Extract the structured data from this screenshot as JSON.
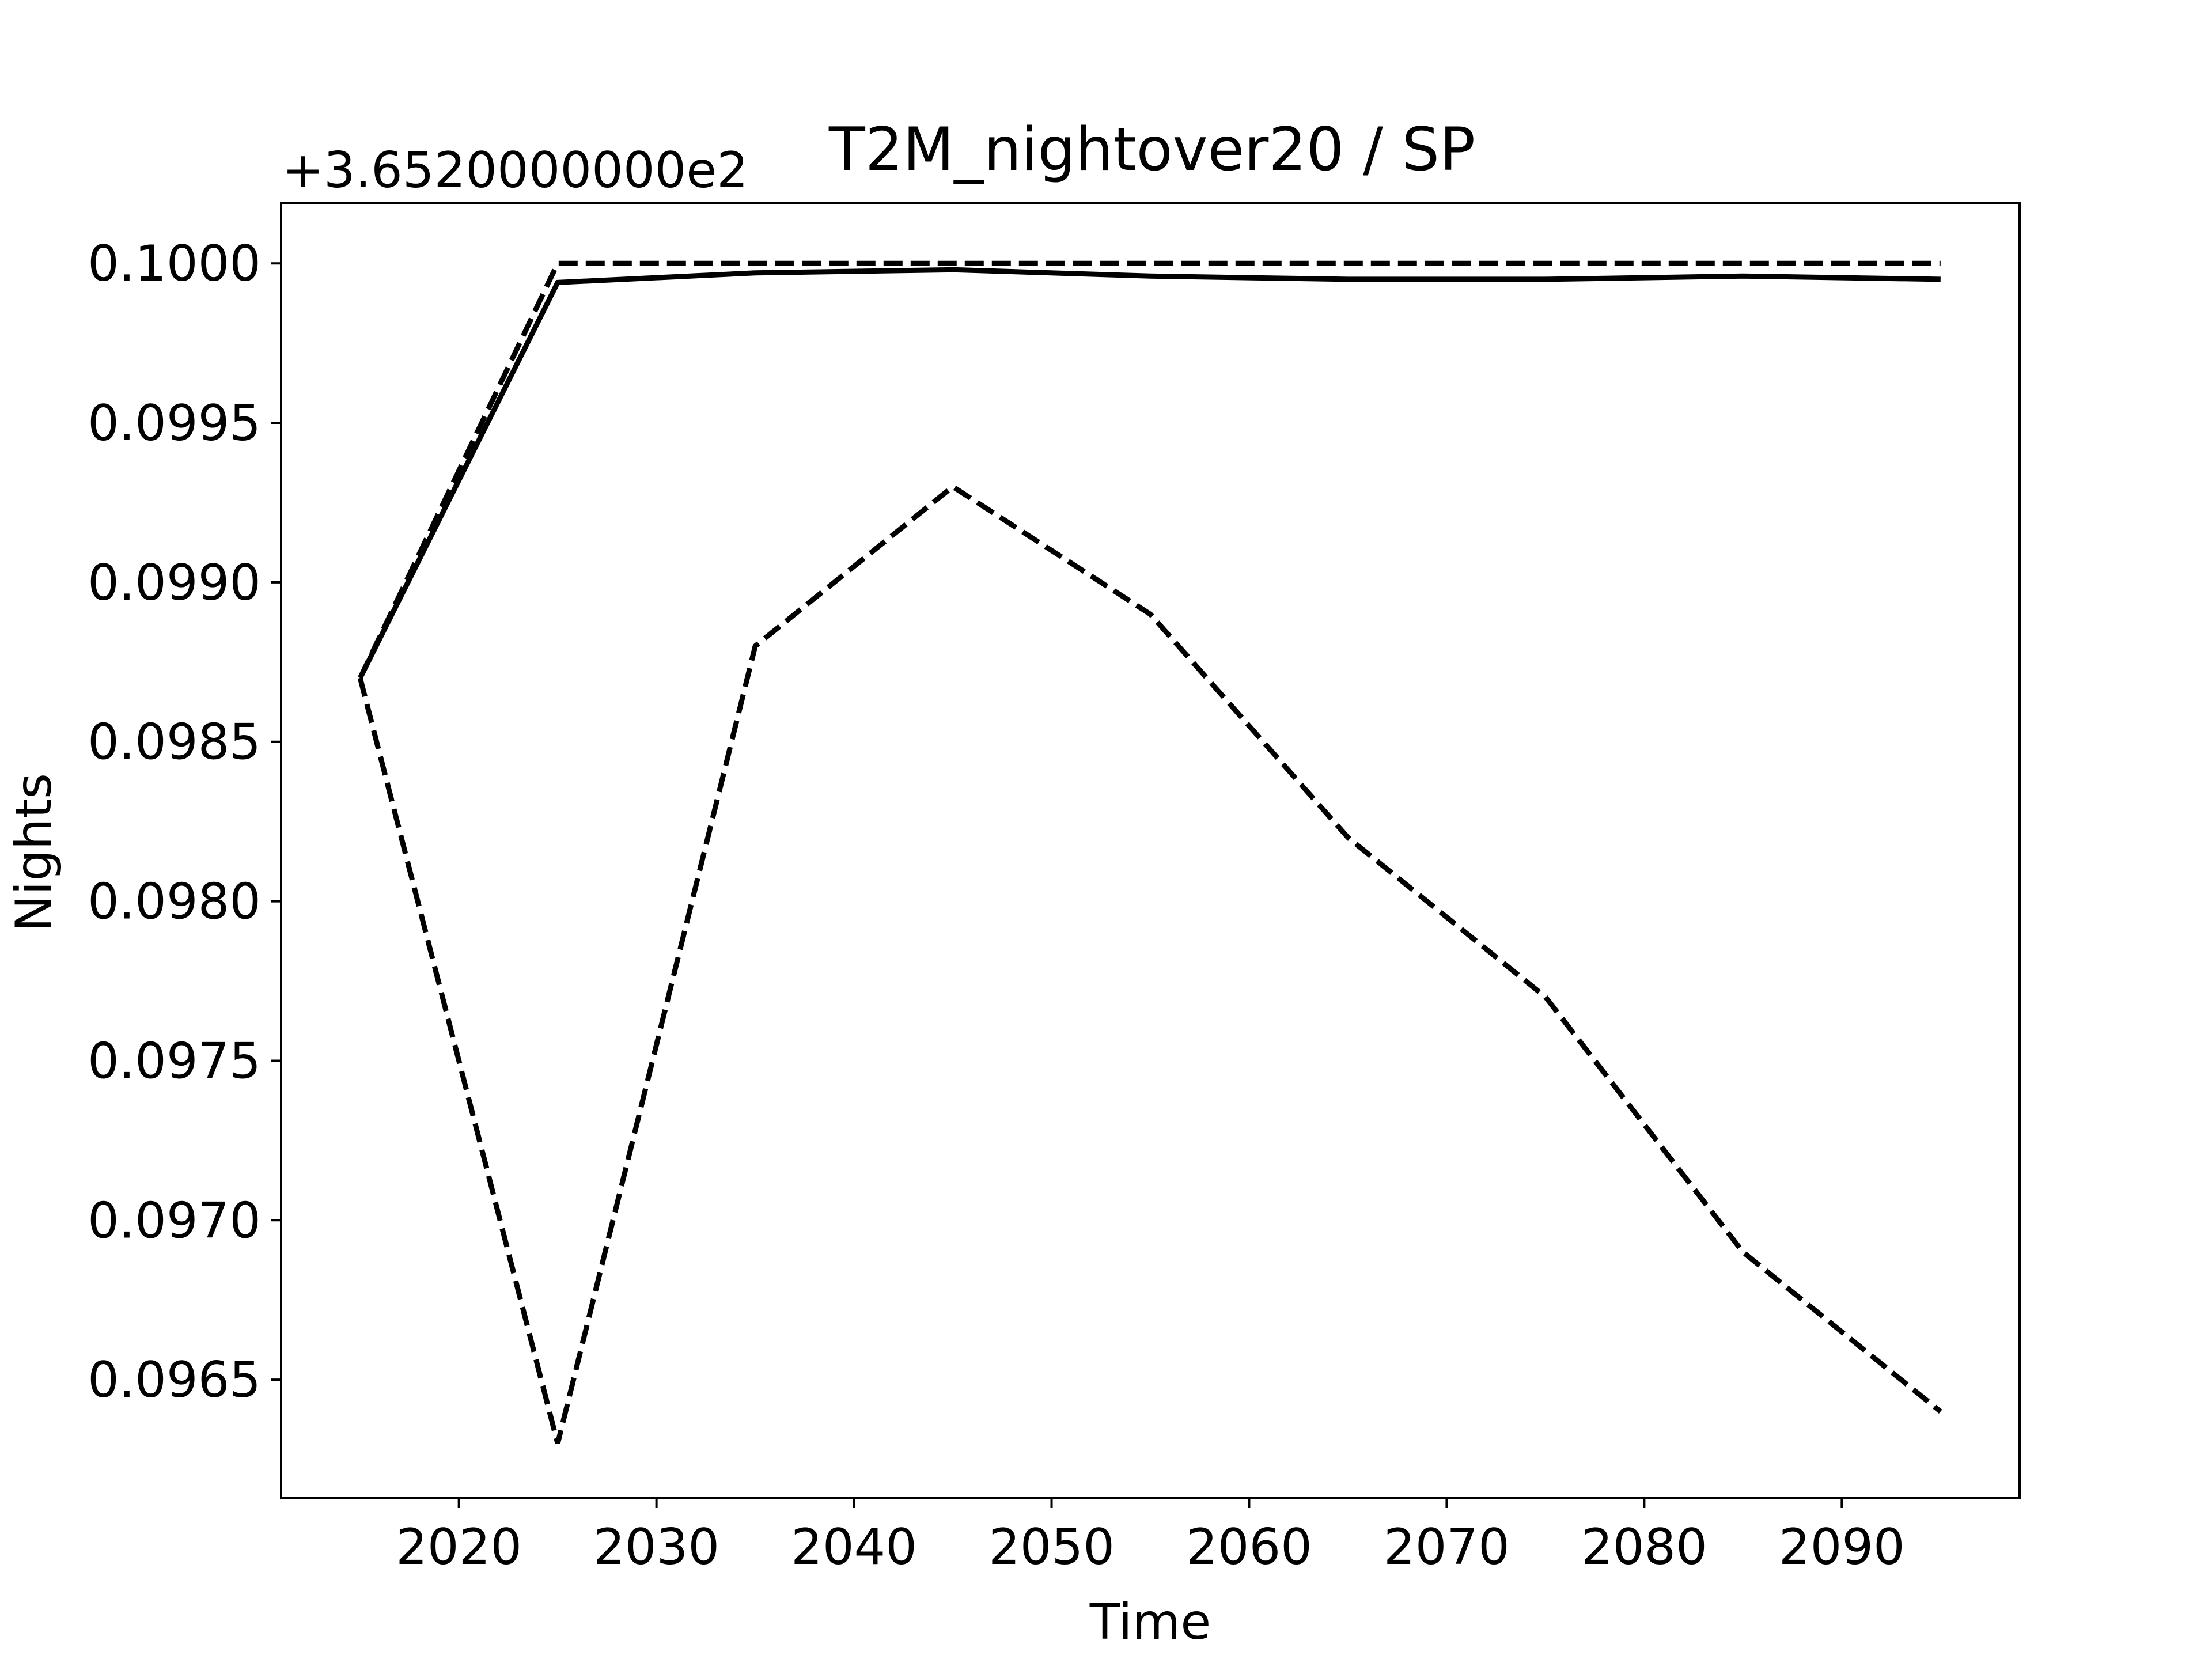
{
  "chart_data": {
    "type": "line",
    "title": "T2M_nightover20 / SP",
    "xlabel": "Time",
    "ylabel": "Nights",
    "y_offset_text": "+3.6520000000e2",
    "y_offset": 365.2,
    "xlim": [
      2011,
      2099
    ],
    "ylim": [
      0.09613,
      0.10019
    ],
    "x_ticks": [
      2020,
      2030,
      2040,
      2050,
      2060,
      2070,
      2080,
      2090
    ],
    "x_tick_labels": [
      "2020",
      "2030",
      "2040",
      "2050",
      "2060",
      "2070",
      "2080",
      "2090"
    ],
    "y_ticks": [
      0.0965,
      0.097,
      0.0975,
      0.098,
      0.0985,
      0.099,
      0.0995,
      0.1
    ],
    "y_tick_labels": [
      "0.0965",
      "0.0970",
      "0.0975",
      "0.0980",
      "0.0985",
      "0.0990",
      "0.0995",
      "0.1000"
    ],
    "grid": false,
    "x": [
      2015,
      2025,
      2035,
      2045,
      2055,
      2065,
      2075,
      2085,
      2095
    ],
    "series": [
      {
        "style": "solid",
        "color": "#000000",
        "values": [
          0.0987,
          0.09994,
          0.09997,
          0.09998,
          0.09996,
          0.09995,
          0.09995,
          0.09996,
          0.09995
        ]
      },
      {
        "style": "dashed",
        "color": "#000000",
        "values": [
          0.0987,
          0.1,
          0.1,
          0.1,
          0.1,
          0.1,
          0.1,
          0.1,
          0.1
        ]
      },
      {
        "style": "dashed",
        "color": "#000000",
        "values": [
          0.0987,
          0.0963,
          0.0988,
          0.0993,
          0.0989,
          0.0982,
          0.0977,
          0.0969,
          0.0964
        ]
      }
    ]
  }
}
